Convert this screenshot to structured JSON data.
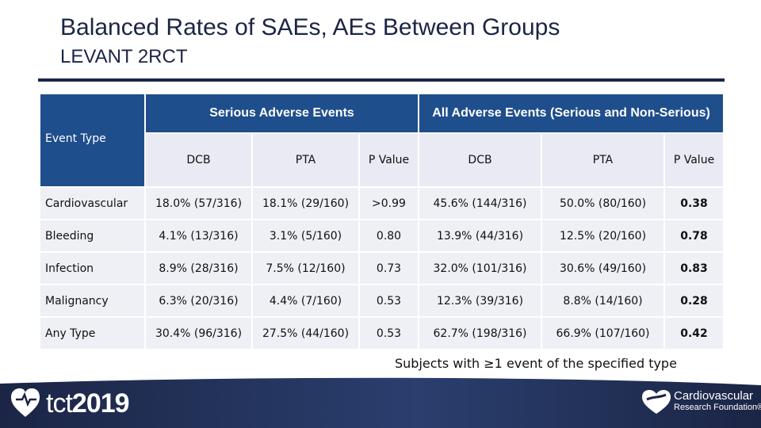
{
  "title": "Balanced Rates of SAEs, AEs Between Groups",
  "subtitle": "LEVANT 2RCT",
  "table": {
    "event_type_header": "Event Type",
    "group1": "Serious Adverse Events",
    "group2": "All Adverse Events (Serious and Non-Serious)",
    "sub_headers": [
      "DCB",
      "PTA",
      "P Value",
      "DCB",
      "PTA",
      "P Value"
    ],
    "rows": [
      {
        "label": "Cardiovascular",
        "sae_dcb": "18.0% (57/316)",
        "sae_pta": "18.1% (29/160)",
        "sae_p": ">0.99",
        "ae_dcb": "45.6% (144/316)",
        "ae_pta": "50.0% (80/160)",
        "ae_p": "0.38"
      },
      {
        "label": "Bleeding",
        "sae_dcb": "4.1% (13/316)",
        "sae_pta": "3.1% (5/160)",
        "sae_p": "0.80",
        "ae_dcb": "13.9% (44/316)",
        "ae_pta": "12.5% (20/160)",
        "ae_p": "0.78"
      },
      {
        "label": "Infection",
        "sae_dcb": "8.9% (28/316)",
        "sae_pta": "7.5% (12/160)",
        "sae_p": "0.73",
        "ae_dcb": "32.0% (101/316)",
        "ae_pta": "30.6% (49/160)",
        "ae_p": "0.83"
      },
      {
        "label": "Malignancy",
        "sae_dcb": "6.3% (20/316)",
        "sae_pta": "4.4% (7/160)",
        "sae_p": "0.53",
        "ae_dcb": "12.3% (39/316)",
        "ae_pta": "8.8% (14/160)",
        "ae_p": "0.28"
      },
      {
        "label": "Any Type",
        "sae_dcb": "30.4% (96/316)",
        "sae_pta": "27.5% (44/160)",
        "sae_p": "0.53",
        "ae_dcb": "62.7% (198/316)",
        "ae_pta": "66.9% (107/160)",
        "ae_p": "0.42"
      }
    ]
  },
  "footnote": "Subjects with ≥1 event of the specified type",
  "footer": {
    "left_logo_text_light": "tct",
    "left_logo_text_bold": "2019",
    "right_logo_line1": "Cardiovascular",
    "right_logo_line2": "Research Foundation®"
  },
  "colors": {
    "header_blue": "#1f4e8c",
    "title_navy": "#1b2545",
    "cell_bg": "#eef0f6",
    "band_dark": "#1b2545"
  },
  "icons": [
    "heart-logo-icon",
    "crf-heart-icon"
  ]
}
